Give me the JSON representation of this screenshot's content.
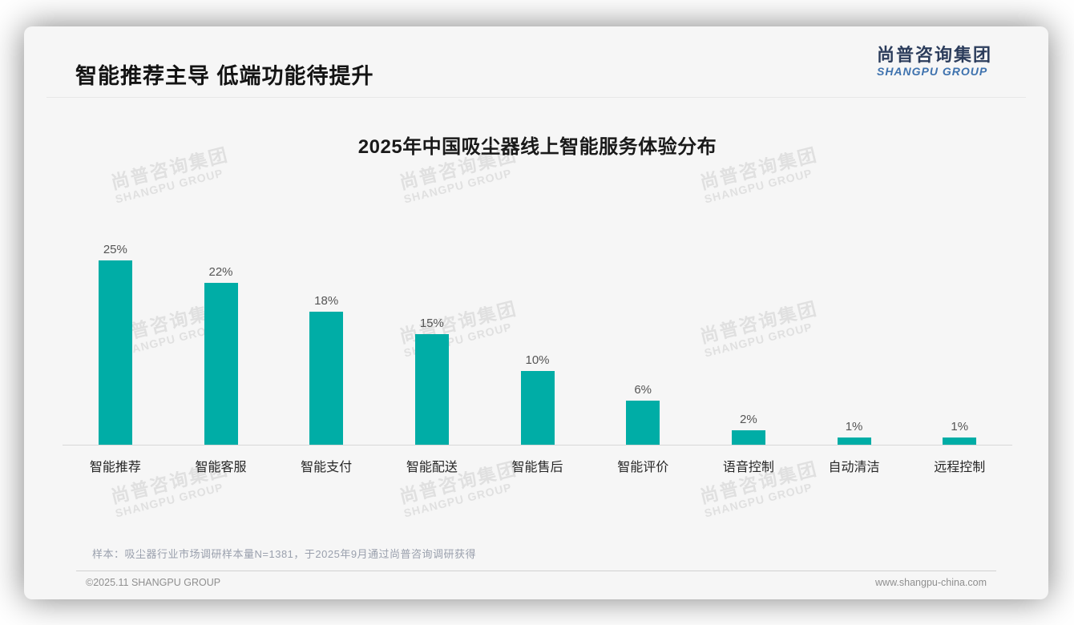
{
  "header": {
    "title": "智能推荐主导 低端功能待提升"
  },
  "logo": {
    "cn": "尚普咨询集团",
    "en": "SHANGPU GROUP"
  },
  "watermark": {
    "cn": "尚普咨询集团",
    "en": "SHANGPU GROUP"
  },
  "chart_data": {
    "type": "bar",
    "title": "2025年中国吸尘器线上智能服务体验分布",
    "categories": [
      "智能推荐",
      "智能客服",
      "智能支付",
      "智能配送",
      "智能售后",
      "智能评价",
      "语音控制",
      "自动清洁",
      "远程控制"
    ],
    "values": [
      25,
      22,
      18,
      15,
      10,
      6,
      2,
      1,
      1
    ],
    "unit": "%",
    "bar_color": "#00ada6",
    "ylim": [
      0,
      25
    ],
    "grid": false,
    "legend": false,
    "value_labels": [
      "25%",
      "22%",
      "18%",
      "15%",
      "10%",
      "6%",
      "2%",
      "1%",
      "1%"
    ]
  },
  "footer": {
    "note": "样本：吸尘器行业市场调研样本量N=1381，于2025年9月通过尚普咨询调研获得",
    "copyright": "©2025.11 SHANGPU GROUP",
    "website": "www.shangpu-china.com"
  }
}
